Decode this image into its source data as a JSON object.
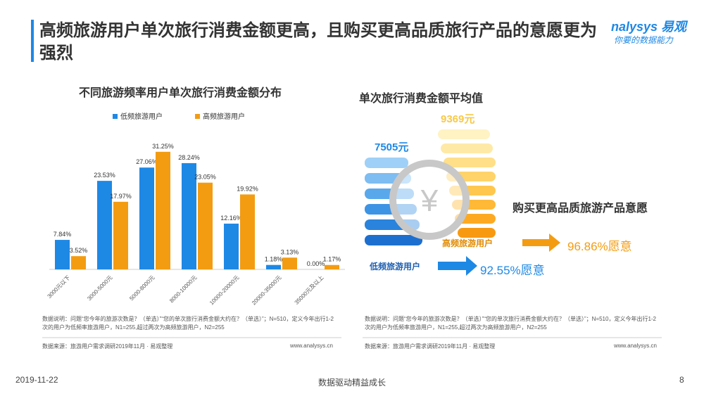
{
  "header": {
    "title": "高频旅游用户单次旅行消费金额更高，且购买更高品质旅行产品的意愿更为强烈",
    "logo": "nalysys 易观",
    "slogan": "你要的数据能力"
  },
  "chart_data": {
    "type": "bar",
    "title": "不同旅游频率用户单次旅行消费金额分布",
    "categories": [
      "3000元以下",
      "3000-5000元",
      "5000-8000元",
      "8000-10000元",
      "10000-20000元",
      "20000-35000元",
      "35000元及以上"
    ],
    "series": [
      {
        "name": "低频旅游用户",
        "color": "#1e88e5",
        "values": [
          7.84,
          23.53,
          27.06,
          28.24,
          12.16,
          1.18,
          0.0
        ],
        "value_labels": [
          "7.84%",
          "23.53%",
          "27.06%",
          "28.24%",
          "12.16%",
          "1.18%",
          "0.00%"
        ]
      },
      {
        "name": "高频旅游用户",
        "color": "#f39c12",
        "values": [
          3.52,
          17.97,
          31.25,
          23.05,
          19.92,
          3.13,
          1.17
        ],
        "value_labels": [
          "3.52%",
          "17.97%",
          "31.25%",
          "23.05%",
          "19.92%",
          "3.13%",
          "1.17%"
        ]
      }
    ],
    "legend": "top"
  },
  "notes": {
    "description": "数据说明：问题“您今年的旅游次数是？（单选）”“您的单次旅行消费金额大约在？（单选）”；N=510，定义今年出行1-2次的用户为低频率旅游用户，N1=255,超过两次为高频旅游用户，N2=255",
    "source": "数据来源：旅游用户需求调研2019年11月 · 易观整理",
    "site": "www.analysys.cn"
  },
  "infographic": {
    "title": "单次旅行消费金额平均值",
    "low_amount": "7505元",
    "high_amount": "9369元",
    "low_label": "低频旅游用户",
    "high_label": "高频旅游用户",
    "willing_title": "购买更高品质旅游产品意愿",
    "low_willing": "92.55%愿意",
    "high_willing": "96.86%愿意"
  },
  "footer": {
    "date": "2019-11-22",
    "slogan": "数据驱动精益成长",
    "page": "8"
  }
}
